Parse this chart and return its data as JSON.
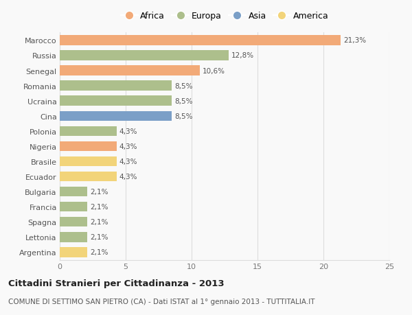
{
  "countries": [
    "Marocco",
    "Russia",
    "Senegal",
    "Romania",
    "Ucraina",
    "Cina",
    "Polonia",
    "Nigeria",
    "Brasile",
    "Ecuador",
    "Bulgaria",
    "Francia",
    "Spagna",
    "Lettonia",
    "Argentina"
  ],
  "values": [
    21.3,
    12.8,
    10.6,
    8.5,
    8.5,
    8.5,
    4.3,
    4.3,
    4.3,
    4.3,
    2.1,
    2.1,
    2.1,
    2.1,
    2.1
  ],
  "labels": [
    "21,3%",
    "12,8%",
    "10,6%",
    "8,5%",
    "8,5%",
    "8,5%",
    "4,3%",
    "4,3%",
    "4,3%",
    "4,3%",
    "2,1%",
    "2,1%",
    "2,1%",
    "2,1%",
    "2,1%"
  ],
  "continents": [
    "Africa",
    "Europa",
    "Africa",
    "Europa",
    "Europa",
    "Asia",
    "Europa",
    "Africa",
    "America",
    "America",
    "Europa",
    "Europa",
    "Europa",
    "Europa",
    "America"
  ],
  "colors": {
    "Africa": "#F2AA78",
    "Europa": "#ADBF8C",
    "Asia": "#7B9FC7",
    "America": "#F2D47A"
  },
  "legend_order": [
    "Africa",
    "Europa",
    "Asia",
    "America"
  ],
  "title": "Cittadini Stranieri per Cittadinanza - 2013",
  "subtitle": "COMUNE DI SETTIMO SAN PIETRO (CA) - Dati ISTAT al 1° gennaio 2013 - TUTTITALIA.IT",
  "xlim": [
    0,
    25
  ],
  "xticks": [
    0,
    5,
    10,
    15,
    20,
    25
  ],
  "bg_color": "#f9f9f9",
  "grid_color": "#dddddd",
  "bar_height": 0.65,
  "label_fontsize": 7.5,
  "tick_fontsize": 8,
  "legend_fontsize": 9,
  "title_fontsize": 9.5,
  "subtitle_fontsize": 7.5
}
